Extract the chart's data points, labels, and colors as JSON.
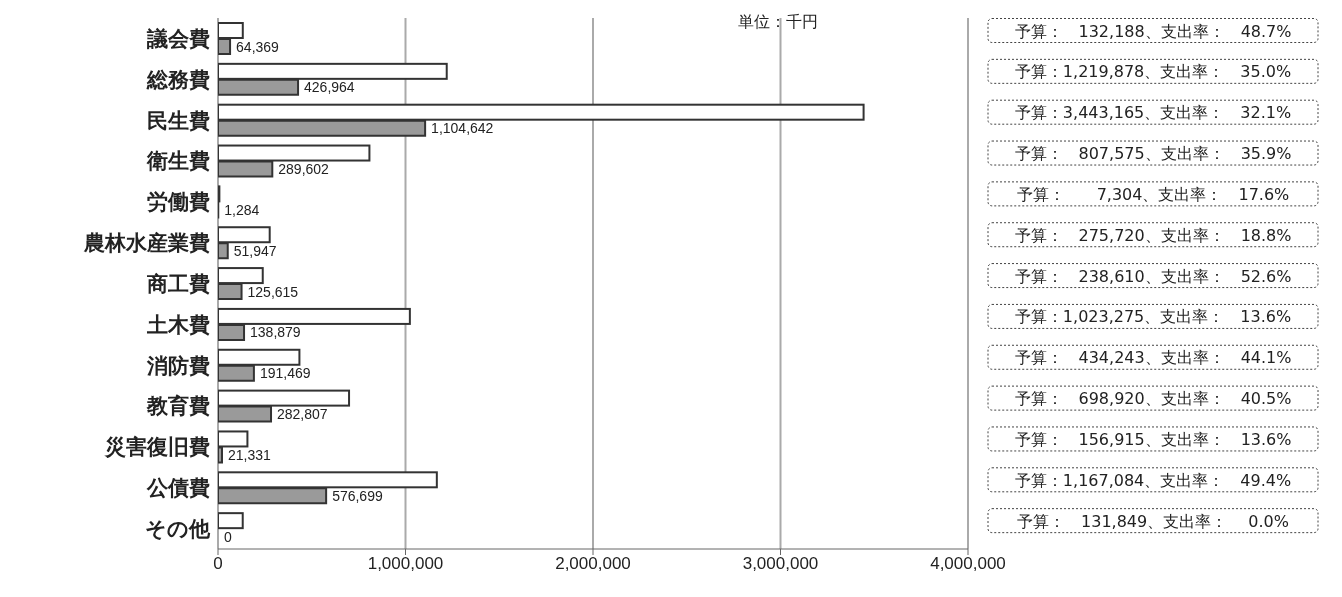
{
  "chart_data": {
    "type": "bar",
    "orientation": "horizontal",
    "categories": [
      "議会費",
      "総務費",
      "民生費",
      "衛生費",
      "労働費",
      "農林水産業費",
      "商工費",
      "土木費",
      "消防費",
      "教育費",
      "災害復旧費",
      "公債費",
      "その他"
    ],
    "series": [
      {
        "color": "#ffffff",
        "values": [
          132188,
          1219878,
          3443165,
          807575,
          7304,
          275720,
          238610,
          1023275,
          434243,
          698920,
          156915,
          1167084,
          131849
        ],
        "value_labels": [
          "予算：　132,188、支出率：　48.7%",
          "予算：1,219,878、支出率：　35.0%",
          "予算：3,443,165、支出率：　32.1%",
          "予算：　807,575、支出率：　35.9%",
          "予算：　　7,304、支出率：　17.6%",
          "予算：　275,720、支出率：　18.8%",
          "予算：　238,610、支出率：　52.6%",
          "予算：1,023,275、支出率：　13.6%",
          "予算：　434,243、支出率：　44.1%",
          "予算：　698,920、支出率：　40.5%",
          "予算：　156,915、支出率：　13.6%",
          "予算：1,167,084、支出率：　49.4%",
          "予算：　131,849、支出率：　 0.0%"
        ]
      },
      {
        "color": "#9a9a9a",
        "values": [
          64369,
          426964,
          1104642,
          289602,
          1284,
          51947,
          125615,
          138879,
          191469,
          282807,
          21331,
          576699,
          0
        ],
        "value_labels": [
          "64,369",
          "426,964",
          "1,104,642",
          "289,602",
          "1,284",
          "51,947",
          "125,615",
          "138,879",
          "191,469",
          "282,807",
          "21,331",
          "576,699",
          "0"
        ]
      }
    ],
    "xlim": [
      0,
      4000000
    ],
    "xticks": [
      {
        "value": 0,
        "label": "0"
      },
      {
        "value": 1000000,
        "label": "1,000,000"
      },
      {
        "value": 2000000,
        "label": "2,000,000"
      },
      {
        "value": 3000000,
        "label": "3,000,000"
      },
      {
        "value": 4000000,
        "label": "4,000,000"
      }
    ],
    "grid": "x",
    "annotations": [
      "単位：千円"
    ]
  }
}
